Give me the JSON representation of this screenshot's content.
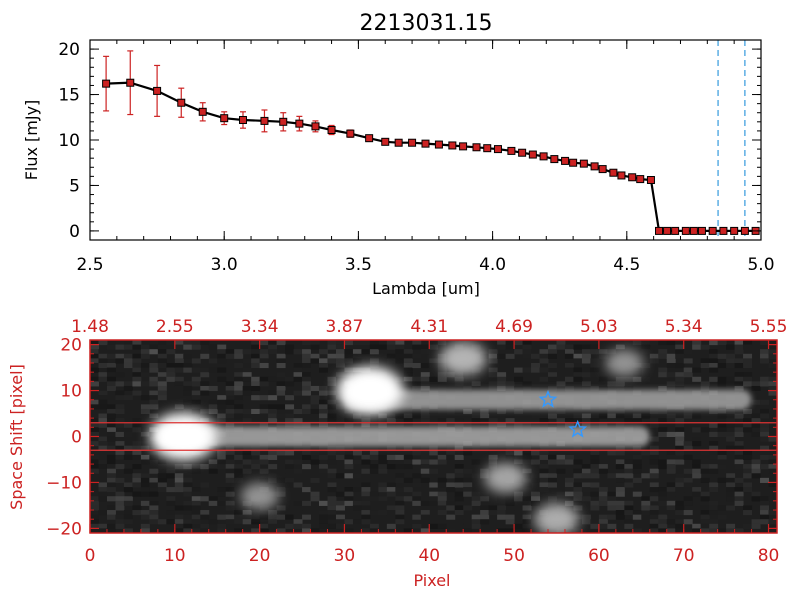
{
  "chart_data": [
    {
      "type": "line",
      "title": "2213031.15",
      "xlabel": "Lambda [um]",
      "ylabel": "Flux [mJy]",
      "xlim": [
        2.5,
        5.0
      ],
      "ylim": [
        -1,
        21
      ],
      "xticks": [
        2.5,
        3.0,
        3.5,
        4.0,
        4.5,
        5.0
      ],
      "xtick_labels": [
        "2.5",
        "3.0",
        "3.5",
        "4.0",
        "4.5",
        "5.0"
      ],
      "yticks": [
        0,
        5,
        10,
        15,
        20
      ],
      "ytick_labels": [
        "0",
        "5",
        "10",
        "15",
        "20"
      ],
      "grid": false,
      "colors": {
        "line": "#000000",
        "marker": "#cc2222",
        "errorbar": "#cc2222",
        "vlines": "#3399dd"
      },
      "vertical_lines": [
        4.84,
        4.94
      ],
      "series": [
        {
          "x": [
            2.56,
            2.65,
            2.75,
            2.84,
            2.92,
            3.0,
            3.07,
            3.15,
            3.22,
            3.28,
            3.34,
            3.4,
            3.47,
            3.54,
            3.6,
            3.65,
            3.7,
            3.75,
            3.8,
            3.85,
            3.89,
            3.94,
            3.98,
            4.02,
            4.07,
            4.11,
            4.15,
            4.19,
            4.23,
            4.27,
            4.3,
            4.34,
            4.38,
            4.41,
            4.45,
            4.48,
            4.52,
            4.55,
            4.59,
            4.62,
            4.65,
            4.68,
            4.72,
            4.75,
            4.78,
            4.82,
            4.86,
            4.9,
            4.94,
            4.98
          ],
          "y": [
            16.2,
            16.3,
            15.4,
            14.1,
            13.1,
            12.4,
            12.2,
            12.1,
            12.0,
            11.8,
            11.5,
            11.1,
            10.7,
            10.2,
            9.8,
            9.7,
            9.7,
            9.6,
            9.5,
            9.4,
            9.3,
            9.2,
            9.1,
            9.0,
            8.8,
            8.6,
            8.4,
            8.2,
            7.9,
            7.7,
            7.5,
            7.4,
            7.1,
            6.8,
            6.4,
            6.1,
            5.9,
            5.7,
            5.6,
            0.0,
            0.0,
            0.0,
            0.0,
            0.0,
            0.0,
            0.0,
            0.0,
            0.0,
            0.0,
            0.0
          ],
          "yerr": [
            3.0,
            3.5,
            2.8,
            1.6,
            1.0,
            0.7,
            0.9,
            1.2,
            1.0,
            0.8,
            0.6,
            0.5,
            0.4,
            0.3,
            0.3,
            0.3,
            0.3,
            0.3,
            0.3,
            0.3,
            0.3,
            0.3,
            0.3,
            0.3,
            0.3,
            0.3,
            0.3,
            0.3,
            0.3,
            0.3,
            0.3,
            0.3,
            0.3,
            0.3,
            0.3,
            0.3,
            0.3,
            0.3,
            0.3,
            0,
            0,
            0,
            0,
            0,
            0,
            0,
            0,
            0,
            0,
            0
          ]
        }
      ]
    },
    {
      "type": "heatmap",
      "xlabel": "Pixel",
      "ylabel": "Space Shift [pixel]",
      "xlim": [
        0,
        81
      ],
      "ylim": [
        -21,
        21
      ],
      "xticks": [
        0,
        10,
        20,
        30,
        40,
        50,
        60,
        70,
        80
      ],
      "xtick_labels": [
        "0",
        "10",
        "20",
        "30",
        "40",
        "50",
        "60",
        "70",
        "80"
      ],
      "yticks": [
        -20,
        -10,
        0,
        10,
        20
      ],
      "ytick_labels": [
        "−20",
        "−10",
        "0",
        "10",
        "20"
      ],
      "top_tick_labels": [
        "1.48",
        "2.55",
        "3.34",
        "3.87",
        "4.31",
        "4.69",
        "5.03",
        "5.34",
        "5.55"
      ],
      "grid": false,
      "colors": {
        "axes": "#cc2222",
        "aperture_lines": "#dd3333",
        "stars": "#3399ff"
      },
      "aperture_lines": [
        3,
        -3
      ],
      "markers": [
        {
          "shape": "star",
          "x": 54,
          "y": 8
        },
        {
          "shape": "star",
          "x": 57.5,
          "y": 1.5
        }
      ],
      "sources": [
        {
          "x": 11,
          "y": 0,
          "intensity": 1.0
        },
        {
          "x": 33,
          "y": 10,
          "intensity": 1.0
        },
        {
          "x": 44,
          "y": 17,
          "intensity": 0.55
        },
        {
          "x": 49,
          "y": -9,
          "intensity": 0.45
        },
        {
          "x": 55,
          "y": -18,
          "intensity": 0.5
        },
        {
          "x": 20,
          "y": -13,
          "intensity": 0.35
        },
        {
          "x": 63,
          "y": 16,
          "intensity": 0.35
        }
      ],
      "streaks": [
        {
          "x_start": 8,
          "x_end": 66,
          "y": 0,
          "intensity": 0.6
        },
        {
          "x_start": 30,
          "x_end": 78,
          "y": 8,
          "intensity": 0.55
        }
      ]
    }
  ]
}
